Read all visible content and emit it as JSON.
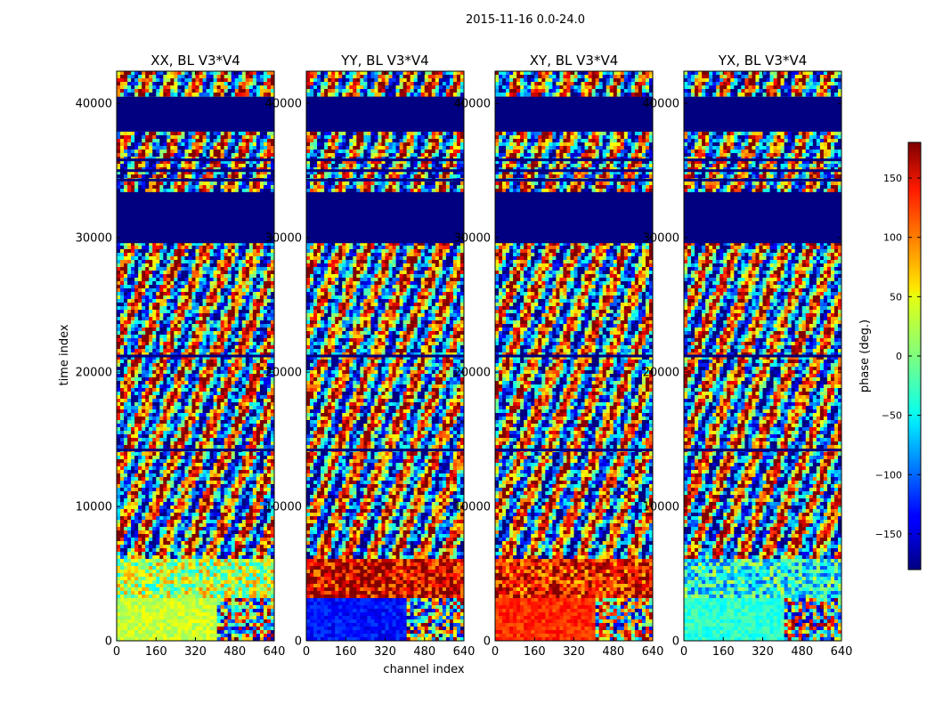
{
  "figure": {
    "suptitle": "2015-11-16 0.0-24.0"
  },
  "chart_data": {
    "type": "heatmap",
    "colormap": "jet",
    "xlabel": "channel index",
    "ylabel": "time index",
    "xlim": [
      0,
      640
    ],
    "ylim": [
      0,
      42400
    ],
    "x_ticks": [
      "0",
      "160",
      "320",
      "480",
      "640"
    ],
    "y_ticks": [
      "0",
      "10000",
      "20000",
      "30000",
      "40000"
    ],
    "y_tick_values": [
      0,
      10000,
      20000,
      30000,
      40000
    ],
    "panels": [
      {
        "title": "XX, BL V3*V4",
        "bottom_phase": 25,
        "low_phase": 20
      },
      {
        "title": "YY, BL V3*V4",
        "bottom_phase": -130,
        "low_phase": 150
      },
      {
        "title": "XY, BL V3*V4",
        "bottom_phase": 120,
        "low_phase": 130
      },
      {
        "title": "YX, BL V3*V4",
        "bottom_phase": -30,
        "low_phase": -40
      }
    ],
    "masked_time_ranges": [
      [
        29600,
        33400
      ],
      [
        37900,
        40500
      ]
    ],
    "colorbar": {
      "label": "phase (deg.)",
      "range": [
        -180,
        180
      ],
      "ticks": [
        "150",
        "100",
        "50",
        "0",
        "−50",
        "−100",
        "−150"
      ],
      "tick_values": [
        150,
        100,
        50,
        0,
        -50,
        -100,
        -150
      ]
    }
  }
}
